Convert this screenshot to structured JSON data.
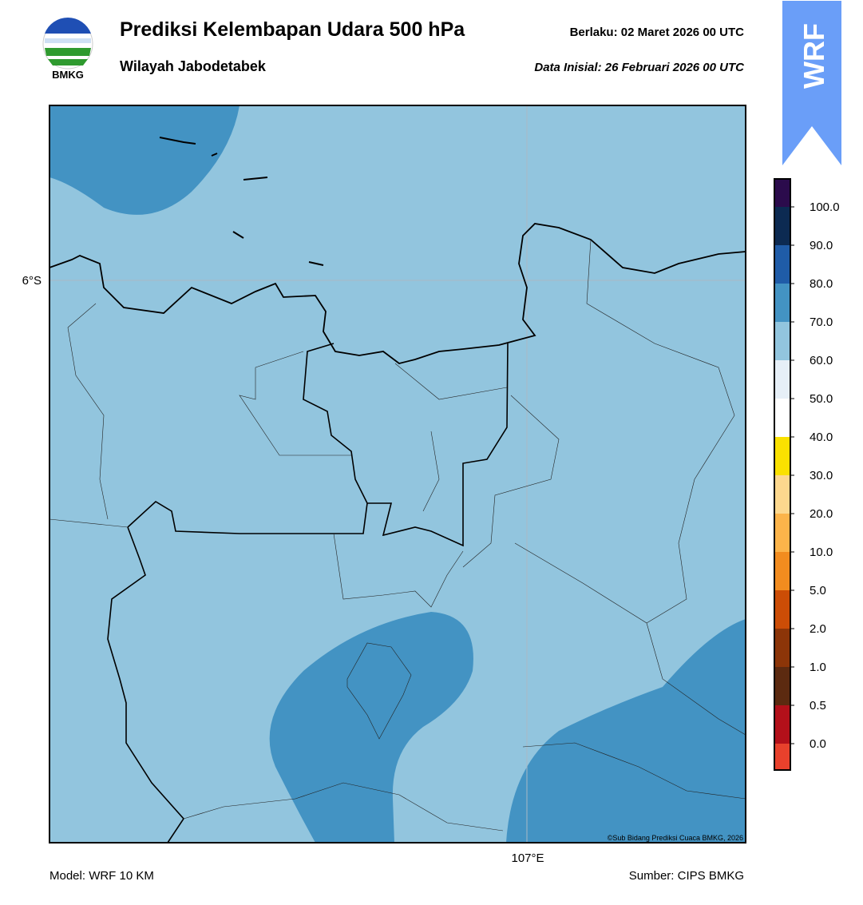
{
  "header": {
    "title": "Prediksi Kelembapan Udara 500 hPa",
    "subtitle": "Wilayah Jabodetabek",
    "valid": "Berlaku:  02 Maret 2026 00 UTC",
    "init": "Data Inisial:  26 Februari 2026 00 UTC",
    "logo": "BMKG",
    "badge": "WRF"
  },
  "map": {
    "lat_label": "6°S",
    "lon_label": "107°E",
    "credit": "©Sub Bidang Prediksi Cuaca BMKG, 2026",
    "base_color": "#92c5de",
    "high_color": "#4393c3"
  },
  "colorbar": {
    "colors": [
      "#e8412c",
      "#b3101a",
      "#5c2a10",
      "#8c3508",
      "#cc4d06",
      "#f28c1f",
      "#fcb44a",
      "#fdd88e",
      "#fae100",
      "#ffffff",
      "#e6eff7",
      "#92c5de",
      "#4393c3",
      "#1f5ca8",
      "#0c2a52",
      "#2b0b4c"
    ],
    "labels": [
      "0.0",
      "0.5",
      "1.0",
      "2.0",
      "5.0",
      "10.0",
      "20.0",
      "30.0",
      "40.0",
      "50.0",
      "60.0",
      "70.0",
      "80.0",
      "90.0",
      "100.0"
    ]
  },
  "footer": {
    "model": "Model: WRF 10 KM",
    "source": "Sumber: CIPS BMKG"
  }
}
